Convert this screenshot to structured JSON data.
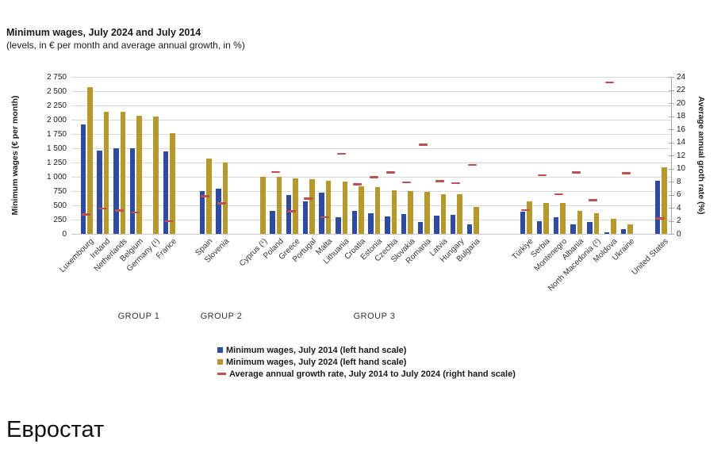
{
  "header": {
    "title": "Minimum wages, July 2024 and July 2014",
    "subtitle": "(levels, in € per month and average annual growth, in %)"
  },
  "footer": {
    "source": "Евростат"
  },
  "colors": {
    "wage_2014": "#2e4b9f",
    "wage_2024": "#b6992c",
    "growth": "#c0504d",
    "gridline": "#d9d9d9",
    "axis": "#a6a6a6"
  },
  "legend": [
    {
      "series": "wage_2014",
      "label": "Minimum wages, July 2014 (left hand scale)"
    },
    {
      "series": "wage_2024",
      "label": "Minimum wages, July 2024 (left hand scale)"
    },
    {
      "series": "growth",
      "label": "Average annual growth rate, July 2014 to July 2024 (right hand scale)"
    }
  ],
  "chart_data": {
    "type": "bar",
    "title": "Minimum wages, July 2024 and July 2014",
    "subtitle": "(levels, in € per month and average annual growth, in %)",
    "left_axis": {
      "label": "Minimum wages (€ per month)",
      "min": 0,
      "max": 2750,
      "tick_step": 250,
      "tick_labels": [
        "0",
        "250",
        "500",
        "750",
        "1 000",
        "1 250",
        "1 500",
        "1 750",
        "2 000",
        "2 250",
        "2 500",
        "2 750"
      ]
    },
    "right_axis": {
      "label": "Average annual groth rate (%)",
      "min": 0,
      "max": 24,
      "tick_step": 2
    },
    "series_units": {
      "wage_2014": "EUR/month",
      "wage_2024": "EUR/month",
      "growth": "% (right hand scale)"
    },
    "groups": [
      {
        "label": "GROUP 1",
        "countries": [
          {
            "name": "Luxembourg",
            "wage_2014": 1921,
            "wage_2024": 2571,
            "growth": 3.0
          },
          {
            "name": "Ireland",
            "wage_2014": 1462,
            "wage_2024": 2146,
            "growth": 3.9
          },
          {
            "name": "Netherlands",
            "wage_2014": 1496,
            "wage_2024": 2134,
            "growth": 3.6
          },
          {
            "name": "Belgium",
            "wage_2014": 1502,
            "wage_2024": 2070,
            "growth": 3.3
          },
          {
            "name": "Germany (¹)",
            "wage_2014": null,
            "wage_2024": 2054,
            "growth": null
          },
          {
            "name": "France",
            "wage_2014": 1445,
            "wage_2024": 1767,
            "growth": 2.0
          }
        ]
      },
      {
        "label": "GROUP 2",
        "countries": [
          {
            "name": "Spain",
            "wage_2014": 753,
            "wage_2024": 1323,
            "growth": 5.8
          },
          {
            "name": "Slovenia",
            "wage_2014": 789,
            "wage_2024": 1254,
            "growth": 4.7
          }
        ]
      },
      {
        "label": "GROUP 3",
        "countries": [
          {
            "name": "Cyprus (¹)",
            "wage_2014": null,
            "wage_2024": 1000,
            "growth": null
          },
          {
            "name": "Poland",
            "wage_2014": 404,
            "wage_2024": 998,
            "growth": 9.5
          },
          {
            "name": "Greece",
            "wage_2014": 684,
            "wage_2024": 968,
            "growth": 3.5
          },
          {
            "name": "Portugal",
            "wage_2014": 566,
            "wage_2024": 957,
            "growth": 5.4
          },
          {
            "name": "Malta",
            "wage_2014": 718,
            "wage_2024": 925,
            "growth": 2.6
          },
          {
            "name": "Lithuania",
            "wage_2014": 290,
            "wage_2024": 924,
            "growth": 12.3
          },
          {
            "name": "Croatia",
            "wage_2014": 405,
            "wage_2024": 840,
            "growth": 7.6
          },
          {
            "name": "Estonia",
            "wage_2014": 355,
            "wage_2024": 820,
            "growth": 8.7
          },
          {
            "name": "Czechia",
            "wage_2014": 310,
            "wage_2024": 764,
            "growth": 9.4
          },
          {
            "name": "Slovakia",
            "wage_2014": 352,
            "wage_2024": 750,
            "growth": 7.9
          },
          {
            "name": "Romania",
            "wage_2014": 205,
            "wage_2024": 743,
            "growth": 13.7
          },
          {
            "name": "Latvia",
            "wage_2014": 320,
            "wage_2024": 700,
            "growth": 8.1
          },
          {
            "name": "Hungary",
            "wage_2014": 328,
            "wage_2024": 697,
            "growth": 7.8
          },
          {
            "name": "Bulgaria",
            "wage_2014": 174,
            "wage_2024": 477,
            "growth": 10.6
          }
        ]
      },
      {
        "label": null,
        "countries": [
          {
            "name": "Türkiye",
            "wage_2014": 386,
            "wage_2024": 568,
            "growth": 3.7
          },
          {
            "name": "Serbia",
            "wage_2014": 222,
            "wage_2024": 549,
            "growth": 9.0
          },
          {
            "name": "Montenegro",
            "wage_2014": 290,
            "wage_2024": 540,
            "growth": 6.1
          },
          {
            "name": "Albania",
            "wage_2014": 168,
            "wage_2024": 405,
            "growth": 9.4
          },
          {
            "name": "North Macedonia (²)",
            "wage_2014": 215,
            "wage_2024": 360,
            "growth": 5.2
          },
          {
            "name": "Moldova",
            "wage_2014": 35,
            "wage_2024": 260,
            "growth": 23.2
          },
          {
            "name": "Ukraine",
            "wage_2014": 90,
            "wage_2024": 172,
            "growth": 9.3
          }
        ]
      },
      {
        "label": null,
        "countries": [
          {
            "name": "United States",
            "wage_2014": 925,
            "wage_2024": 1170,
            "growth": 2.4
          }
        ]
      }
    ]
  }
}
